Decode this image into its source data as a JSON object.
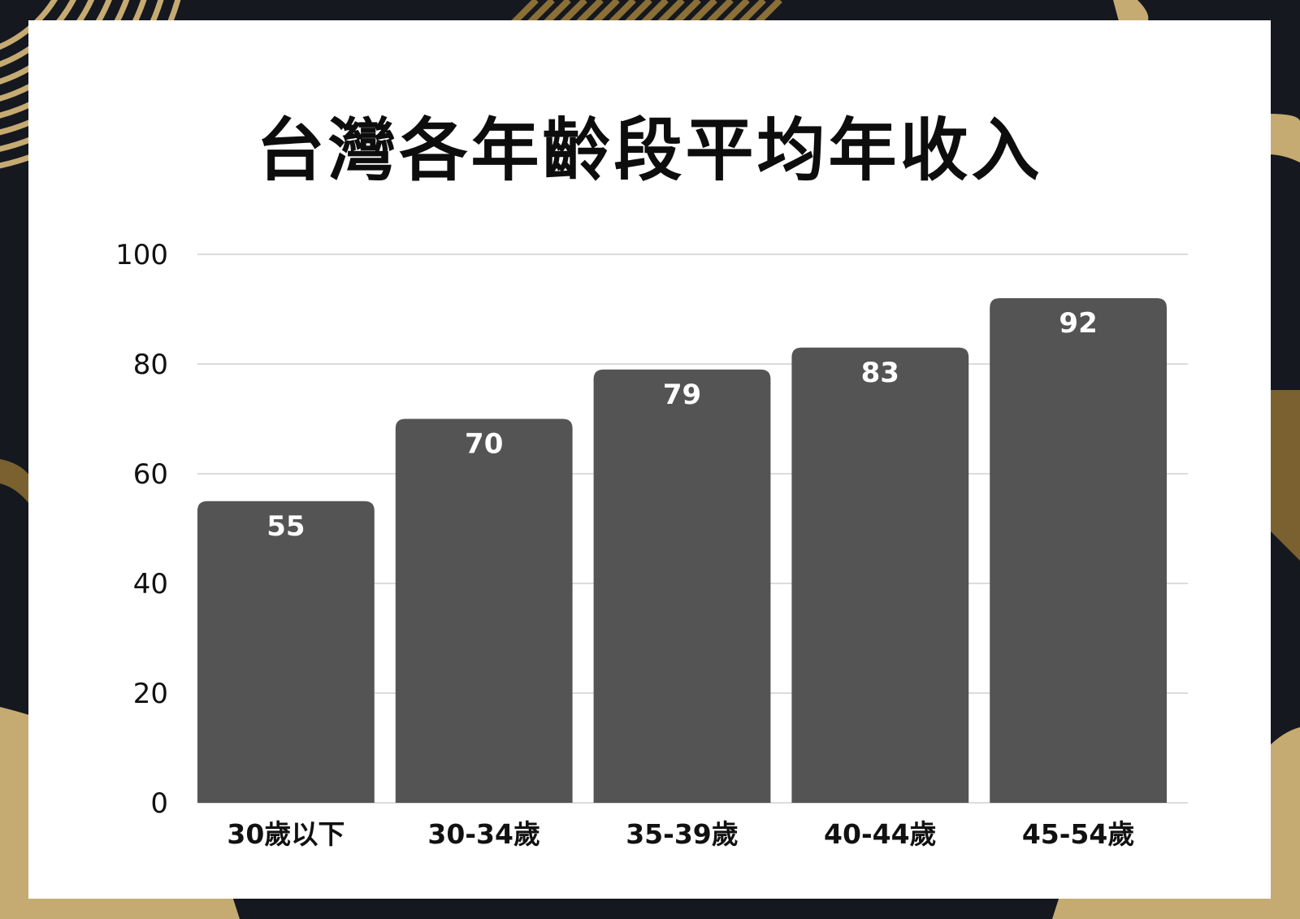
{
  "colors": {
    "background": "#16181f",
    "accent_gold": "#c5ab72",
    "accent_brown": "#7b612f",
    "card": "#ffffff",
    "bar": "#545454",
    "gridline": "#d0d0d0"
  },
  "chart_data": {
    "type": "bar",
    "title": "台灣各年齡段平均年收入",
    "xlabel": "",
    "ylabel": "",
    "categories": [
      "30歲以下",
      "30-34歲",
      "35-39歲",
      "40-44歲",
      "45-54歲"
    ],
    "values": [
      55,
      70,
      79,
      83,
      92
    ],
    "data_labels": [
      "55",
      "70",
      "79",
      "83",
      "92"
    ],
    "ylim": [
      0,
      100
    ],
    "yticks": [
      0,
      20,
      40,
      60,
      80,
      100
    ],
    "ytick_labels": [
      "0",
      "20",
      "40",
      "60",
      "80",
      "100"
    ],
    "grid": true,
    "legend": "none"
  }
}
